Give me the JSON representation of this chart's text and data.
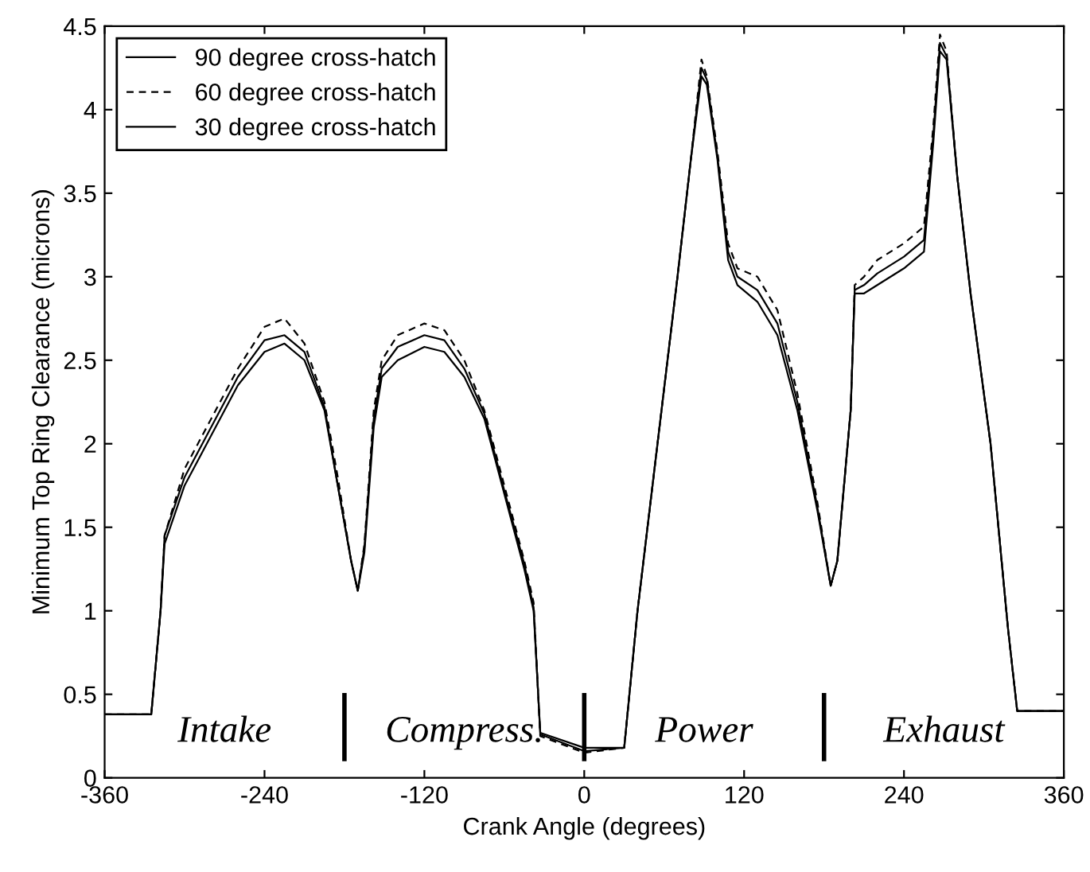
{
  "chart_data": {
    "type": "line",
    "xlabel": "Crank Angle (degrees)",
    "ylabel": "Minimum Top Ring Clearance (microns)",
    "x": [
      -360,
      -325,
      -318,
      -315,
      -300,
      -280,
      -260,
      -240,
      -225,
      -210,
      -195,
      -185,
      -175,
      -170,
      -165,
      -158,
      -152,
      -140,
      -120,
      -105,
      -90,
      -75,
      -60,
      -45,
      -38,
      -33,
      0,
      30,
      40,
      55,
      70,
      80,
      88,
      92,
      100,
      108,
      115,
      130,
      145,
      160,
      175,
      185,
      190,
      200,
      203,
      210,
      220,
      240,
      255,
      262,
      267,
      272,
      280,
      290,
      305,
      318,
      325,
      360
    ],
    "series": [
      {
        "name": "90 degree cross-hatch",
        "color": "#000000",
        "line_style": "solid",
        "values": [
          0.38,
          0.38,
          1.0,
          1.4,
          1.75,
          2.05,
          2.35,
          2.55,
          2.6,
          2.5,
          2.2,
          1.75,
          1.3,
          1.12,
          1.35,
          2.1,
          2.4,
          2.5,
          2.58,
          2.55,
          2.4,
          2.15,
          1.7,
          1.25,
          1.0,
          0.27,
          0.18,
          0.18,
          1.0,
          2.0,
          3.0,
          3.7,
          4.2,
          4.15,
          3.7,
          3.1,
          2.95,
          2.85,
          2.65,
          2.2,
          1.6,
          1.15,
          1.3,
          2.2,
          2.9,
          2.9,
          2.95,
          3.05,
          3.15,
          3.8,
          4.35,
          4.3,
          3.6,
          2.9,
          2.0,
          0.9,
          0.4,
          0.4
        ]
      },
      {
        "name": "60 degree cross-hatch",
        "color": "#000000",
        "line_style": "dashed",
        "values": [
          0.38,
          0.38,
          1.0,
          1.45,
          1.85,
          2.15,
          2.45,
          2.7,
          2.75,
          2.6,
          2.25,
          1.8,
          1.3,
          1.12,
          1.4,
          2.2,
          2.5,
          2.65,
          2.72,
          2.68,
          2.5,
          2.2,
          1.75,
          1.3,
          1.05,
          0.25,
          0.15,
          0.18,
          1.0,
          2.0,
          3.0,
          3.7,
          4.3,
          4.2,
          3.75,
          3.2,
          3.05,
          3.0,
          2.8,
          2.3,
          1.65,
          1.15,
          1.3,
          2.2,
          2.95,
          3.0,
          3.1,
          3.2,
          3.3,
          3.9,
          4.45,
          4.35,
          3.6,
          2.9,
          2.0,
          0.9,
          0.4,
          0.4
        ]
      },
      {
        "name": "30 degree cross-hatch",
        "color": "#000000",
        "line_style": "solid",
        "values": [
          0.38,
          0.38,
          1.0,
          1.45,
          1.8,
          2.1,
          2.4,
          2.62,
          2.65,
          2.55,
          2.22,
          1.75,
          1.3,
          1.12,
          1.38,
          2.15,
          2.45,
          2.58,
          2.65,
          2.62,
          2.45,
          2.18,
          1.72,
          1.28,
          1.02,
          0.26,
          0.16,
          0.18,
          1.0,
          2.0,
          3.0,
          3.7,
          4.25,
          4.18,
          3.72,
          3.15,
          3.0,
          2.92,
          2.72,
          2.25,
          1.62,
          1.15,
          1.3,
          2.2,
          2.92,
          2.95,
          3.02,
          3.12,
          3.22,
          3.85,
          4.4,
          4.32,
          3.6,
          2.9,
          2.0,
          0.9,
          0.4,
          0.4
        ]
      }
    ],
    "xlim": [
      -360,
      360
    ],
    "xticks": [
      -360,
      -240,
      -120,
      0,
      120,
      240,
      360
    ],
    "ylim": [
      0,
      4.5
    ],
    "yticks": [
      0,
      0.5,
      1,
      1.5,
      2,
      2.5,
      3,
      3.5,
      4,
      4.5
    ],
    "ref_lines": [
      {
        "axis": "x",
        "value": -180,
        "color": "#000000"
      },
      {
        "axis": "x",
        "value": 0,
        "color": "#000000"
      },
      {
        "axis": "x",
        "value": 180,
        "color": "#000000"
      }
    ],
    "annotations": [
      "Intake",
      "Compress.",
      "Power",
      "Exhaust"
    ],
    "grid": false,
    "legend": "top left",
    "marker": "none"
  }
}
